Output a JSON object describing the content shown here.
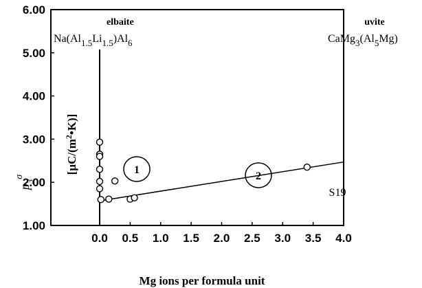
{
  "chart_data": {
    "type": "scatter",
    "title": "",
    "xlabel": "Mg ions per formula unit",
    "ylabel": "p3σ [μC/(m²·K)]",
    "xlim": [
      -0.8,
      4.0
    ],
    "ylim": [
      1.0,
      6.0
    ],
    "x_ticks": [
      "0.0",
      "0.5",
      "1.0",
      "1.5",
      "2.0",
      "2.5",
      "3.0",
      "3.5",
      "4.0"
    ],
    "y_ticks": [
      "1.00",
      "2.00",
      "3.00",
      "4.00",
      "5.00",
      "6.00"
    ],
    "grid": false,
    "points": [
      {
        "x": 0.0,
        "y": 2.93
      },
      {
        "x": 0.0,
        "y": 2.65
      },
      {
        "x": 0.0,
        "y": 2.6
      },
      {
        "x": 0.0,
        "y": 2.3
      },
      {
        "x": 0.0,
        "y": 2.02
      },
      {
        "x": 0.0,
        "y": 1.85
      },
      {
        "x": 0.02,
        "y": 1.6
      },
      {
        "x": 0.15,
        "y": 1.61
      },
      {
        "x": 0.25,
        "y": 2.03
      },
      {
        "x": 0.5,
        "y": 1.61
      },
      {
        "x": 0.57,
        "y": 1.64
      },
      {
        "x": 3.4,
        "y": 2.35,
        "label": "S19"
      }
    ],
    "trend_line": {
      "x": [
        0.0,
        4.0
      ],
      "y": [
        1.57,
        2.47
      ]
    },
    "vertical_line_x": 0.0,
    "annotations": {
      "elbaite_name": "elbaite",
      "elbaite_formula": "Na(Al1.5Li1.5)Al6",
      "uvite_name": "uvite",
      "uvite_formula": "CaMg3(Al5Mg)",
      "region1": "1",
      "region2": "2",
      "point_label": "S19"
    },
    "ylabel_parts": {
      "symbol": "p",
      "subscript": "3",
      "superscript": "σ",
      "units": "[μC/(m²•K)]"
    }
  }
}
